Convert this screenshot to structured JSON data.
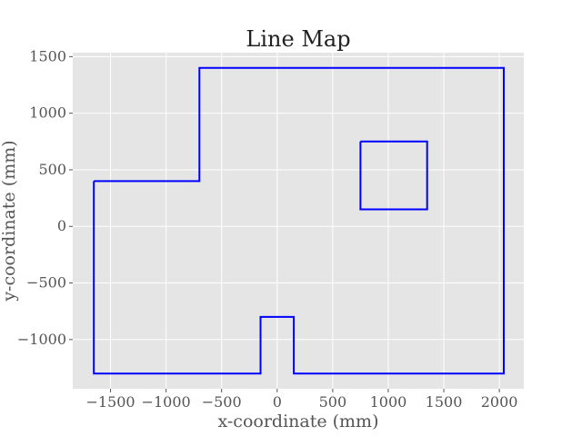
{
  "chart_data": {
    "type": "line",
    "title": "Line Map",
    "xlabel": "x-coordinate (mm)",
    "ylabel": "y-coordinate (mm)",
    "xlim": [
      -1840,
      2220
    ],
    "ylim": [
      -1435,
      1535
    ],
    "x_ticks": [
      -1500,
      -1000,
      -500,
      0,
      500,
      1000,
      1500,
      2000
    ],
    "y_ticks": [
      -1000,
      -500,
      0,
      500,
      1000,
      1500
    ],
    "x_tick_labels": [
      "−1500",
      "−1000",
      "−500",
      "0",
      "500",
      "1000",
      "1500",
      "2000"
    ],
    "y_tick_labels": [
      "−1000",
      "−500",
      "0",
      "500",
      "1000",
      "1500"
    ],
    "grid": true,
    "line_color": "#0000ff",
    "series": [
      {
        "points": [
          [
            -1650,
            400
          ],
          [
            -700,
            400
          ],
          [
            -700,
            1400
          ],
          [
            2040,
            1400
          ],
          [
            2040,
            -1300
          ],
          [
            150,
            -1300
          ],
          [
            150,
            -800
          ],
          [
            -150,
            -800
          ],
          [
            -150,
            -1300
          ],
          [
            -1650,
            -1300
          ],
          [
            -1650,
            400
          ]
        ]
      },
      {
        "points": [
          [
            750,
            750
          ],
          [
            1350,
            750
          ],
          [
            1350,
            150
          ],
          [
            750,
            150
          ],
          [
            750,
            750
          ]
        ]
      }
    ]
  }
}
